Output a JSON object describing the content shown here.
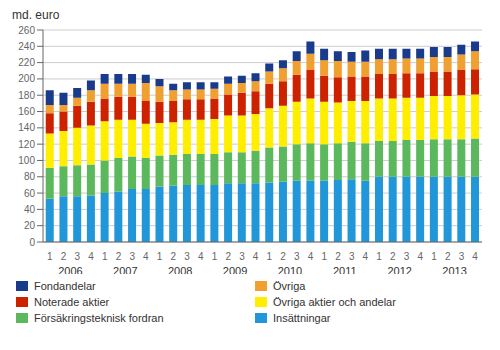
{
  "chart_data": {
    "type": "bar",
    "stacked": true,
    "grid": true,
    "legend": "bottom",
    "y_label": "md. euro",
    "categories": [
      "1",
      "2",
      "3",
      "4",
      "1",
      "2",
      "3",
      "4",
      "1",
      "2",
      "3",
      "4",
      "1",
      "2",
      "3",
      "4",
      "1",
      "2",
      "3",
      "4",
      "1",
      "2",
      "3",
      "4",
      "1",
      "2",
      "3",
      "4",
      "1",
      "2",
      "3",
      "4"
    ],
    "annotations": [
      "2006",
      "2007",
      "2008",
      "2009",
      "2010",
      "2011",
      "2012",
      "2013"
    ],
    "ylim": [
      0,
      260
    ],
    "yticks": [
      0,
      20,
      40,
      60,
      80,
      100,
      120,
      140,
      160,
      180,
      200,
      220,
      240,
      260
    ],
    "series": [
      {
        "name": "Insättningar",
        "color": "#2196d8",
        "values": [
          53,
          56,
          56,
          57,
          60,
          62,
          65,
          65,
          68,
          69,
          70,
          70,
          70,
          72,
          72,
          72,
          73,
          74,
          75,
          75,
          75,
          76,
          77,
          75,
          80,
          80,
          80,
          80,
          80,
          80,
          80,
          80
        ]
      },
      {
        "name": "Försäkringsteknisk fordran",
        "color": "#5cb85c",
        "values": [
          38,
          37,
          38,
          38,
          40,
          41,
          40,
          38,
          38,
          38,
          38,
          38,
          38,
          38,
          38,
          40,
          43,
          43,
          45,
          46,
          45,
          45,
          46,
          46,
          44,
          44,
          45,
          45,
          46,
          46,
          46,
          47
        ]
      },
      {
        "name": "Övriga aktier och andelar",
        "color": "#ffee00",
        "values": [
          42,
          43,
          46,
          48,
          48,
          47,
          45,
          42,
          40,
          40,
          42,
          42,
          43,
          45,
          45,
          45,
          48,
          50,
          52,
          55,
          52,
          50,
          50,
          52,
          52,
          52,
          52,
          52,
          53,
          53,
          54,
          54
        ]
      },
      {
        "name": "Noterade aktier",
        "color": "#cc2200",
        "values": [
          25,
          24,
          27,
          29,
          28,
          28,
          28,
          28,
          26,
          26,
          25,
          25,
          25,
          26,
          28,
          28,
          30,
          30,
          33,
          35,
          32,
          31,
          30,
          30,
          30,
          30,
          30,
          30,
          30,
          30,
          31,
          31
        ]
      },
      {
        "name": "Övriga",
        "color": "#f0a030",
        "values": [
          10,
          8,
          10,
          14,
          18,
          16,
          16,
          22,
          19,
          13,
          12,
          12,
          12,
          13,
          12,
          12,
          15,
          16,
          17,
          20,
          19,
          20,
          18,
          18,
          18,
          18,
          18,
          18,
          18,
          18,
          19,
          22
        ]
      },
      {
        "name": "Fondandelar",
        "color": "#1a3a8c",
        "values": [
          18,
          15,
          12,
          12,
          12,
          12,
          12,
          10,
          9,
          8,
          9,
          9,
          8,
          9,
          9,
          10,
          10,
          10,
          12,
          15,
          14,
          12,
          12,
          14,
          13,
          13,
          12,
          12,
          12,
          12,
          12,
          12
        ]
      }
    ]
  }
}
